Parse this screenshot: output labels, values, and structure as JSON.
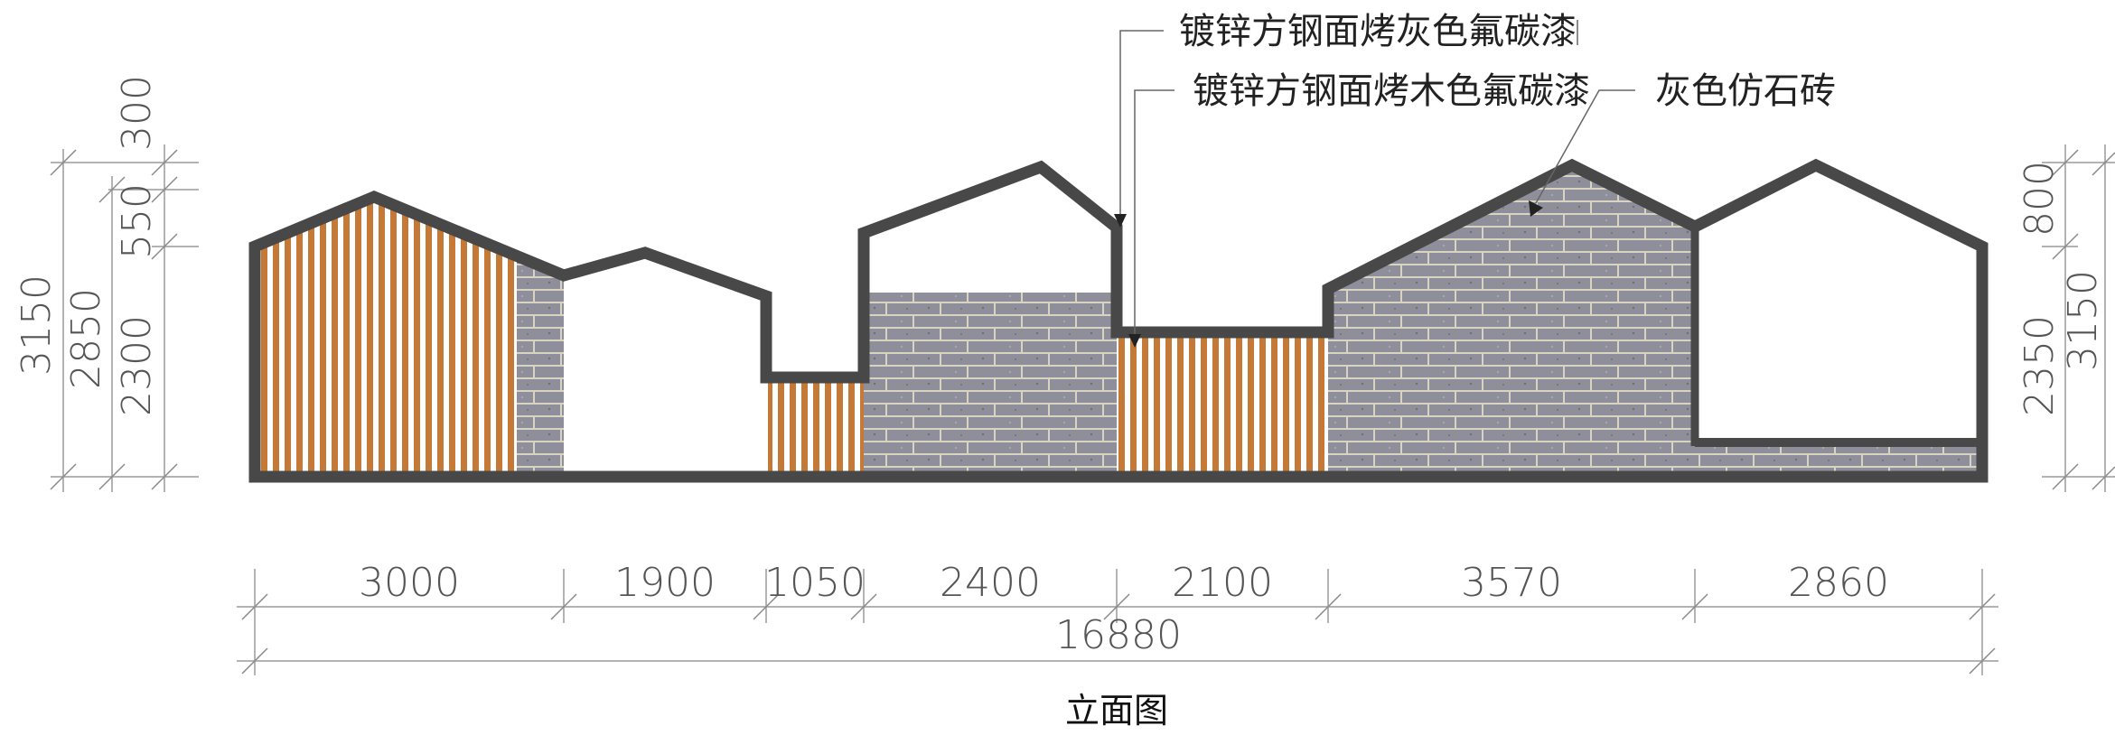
{
  "title": "立面图",
  "annotations": {
    "grey_steel": "镀锌方钢面烤灰色氟碳漆",
    "wood_steel": "镀锌方钢面烤木色氟碳漆",
    "stone_brick": "灰色仿石砖"
  },
  "widths": {
    "total": "16880",
    "segments": [
      "3000",
      "1900",
      "1050",
      "2400",
      "2100",
      "3570",
      "2860"
    ]
  },
  "heights_left": {
    "total": "3150",
    "overall": "2850",
    "lower": "2300",
    "mid": "550",
    "top": "300"
  },
  "heights_right": {
    "total": "3150",
    "lower": "2350",
    "upper": "800"
  },
  "colors": {
    "outline": "#484848",
    "wood": "#c47a36",
    "wood_gap": "#ffffff",
    "brick": "#8e8f9a",
    "mortar": "#d9d3c2"
  }
}
